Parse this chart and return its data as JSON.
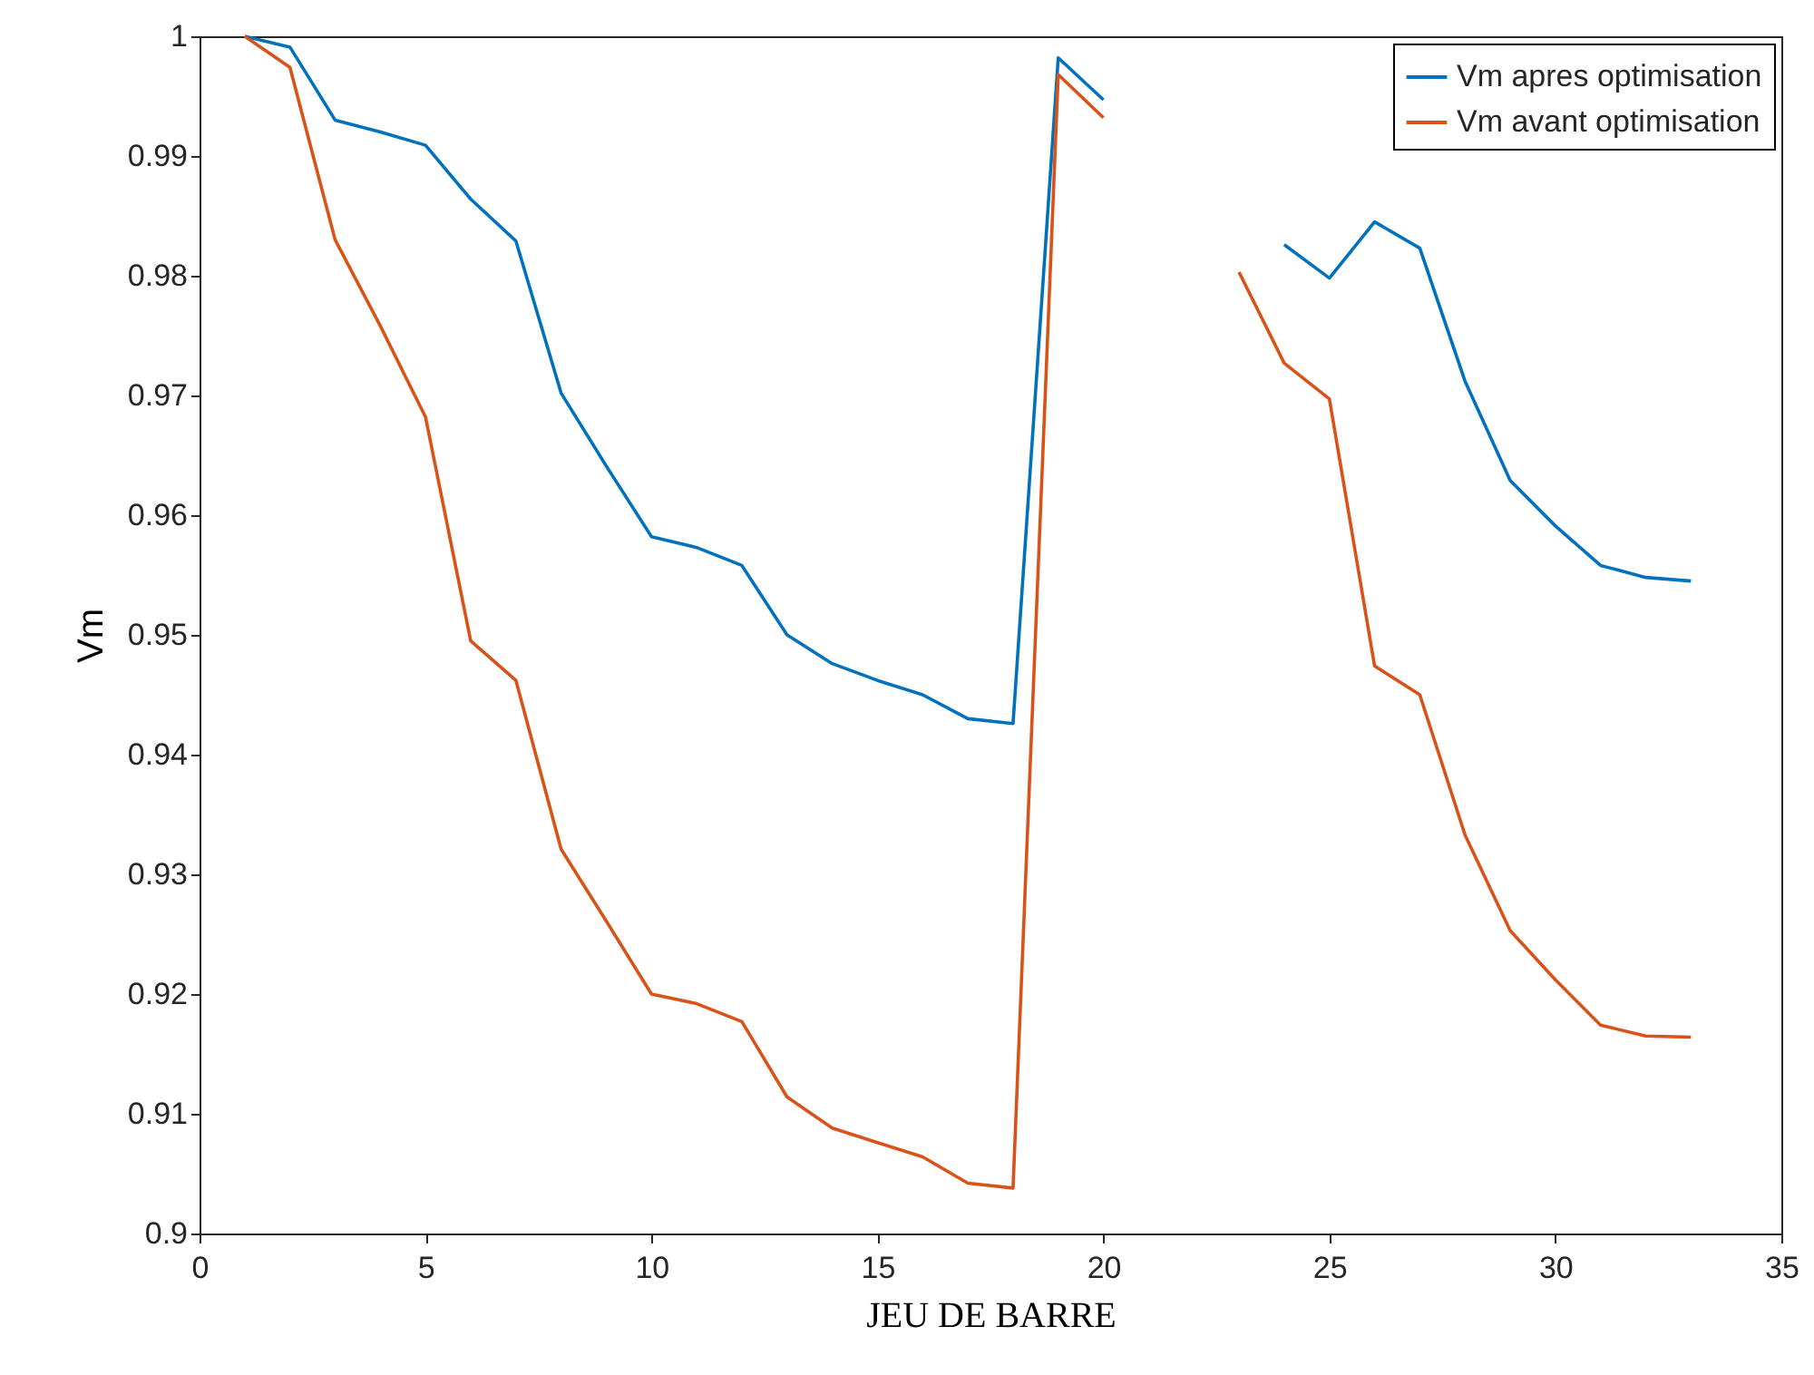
{
  "chart_data": {
    "type": "line",
    "xlabel": "JEU DE BARRE",
    "ylabel": "Vm",
    "x": [
      1,
      2,
      3,
      4,
      5,
      6,
      7,
      8,
      9,
      10,
      11,
      12,
      13,
      14,
      15,
      16,
      17,
      18,
      19,
      20,
      21,
      22,
      23,
      24,
      25,
      26,
      27,
      28,
      29,
      30,
      31,
      32,
      33
    ],
    "series": [
      {
        "name": "Vm apres optimisation",
        "color": "#0072bd",
        "values": [
          1.0,
          0.9991,
          0.993,
          0.992,
          0.9909,
          0.9864,
          0.9829,
          0.9702,
          0.9641,
          0.9582,
          0.9573,
          0.9558,
          0.95,
          0.9476,
          0.9462,
          0.945,
          0.943,
          0.9426,
          0.9982,
          0.9947,
          null,
          null,
          null,
          0.9826,
          0.9798,
          0.9845,
          0.9823,
          0.9712,
          0.9629,
          0.9591,
          0.9558,
          0.9548,
          0.9545
        ]
      },
      {
        "name": "Vm avant optimisation",
        "color": "#d95319",
        "values": [
          1.0,
          0.9974,
          0.983,
          0.9758,
          0.9682,
          0.9495,
          0.9462,
          0.9321,
          0.9261,
          0.92,
          0.9192,
          0.9177,
          0.9114,
          0.9088,
          0.9076,
          0.9064,
          0.9042,
          0.9038,
          0.9968,
          0.9932,
          null,
          null,
          0.9803,
          0.9727,
          0.9697,
          0.9474,
          0.945,
          0.9333,
          0.9253,
          0.9212,
          0.9174,
          0.9165,
          0.9164
        ]
      }
    ],
    "xlim": [
      0,
      35
    ],
    "xticks": [
      0,
      5,
      10,
      15,
      20,
      25,
      30,
      35
    ],
    "ylim": [
      0.9,
      1
    ],
    "yticks": [
      0.9,
      0.91,
      0.92,
      0.93,
      0.94,
      0.95,
      0.96,
      0.97,
      0.98,
      0.99,
      1
    ],
    "grid": false,
    "legend": "top right",
    "line_style": "solid",
    "marker": "none"
  }
}
